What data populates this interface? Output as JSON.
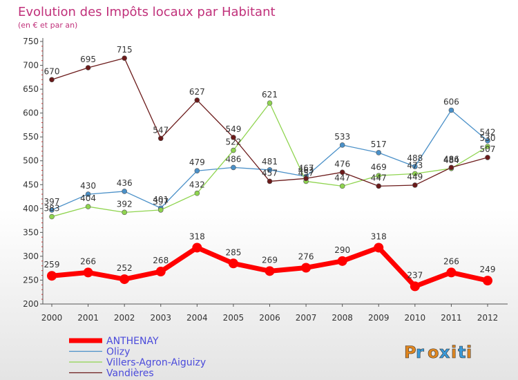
{
  "chart_data": {
    "type": "line",
    "title": "Evolution des Impôts locaux par Habitant",
    "subtitle": "(en € et par an)",
    "x": [
      "2000",
      "2001",
      "2002",
      "2003",
      "2004",
      "2005",
      "2006",
      "2007",
      "2008",
      "2009",
      "2010",
      "2011",
      "2012"
    ],
    "ylim": [
      200,
      750
    ],
    "yticks": [
      200,
      250,
      300,
      350,
      400,
      450,
      500,
      550,
      600,
      650,
      700,
      750
    ],
    "grid": false,
    "legend_position": "bottom-left",
    "series": [
      {
        "name": "ANTHENAY",
        "color": "#ff0000",
        "values": [
          259,
          266,
          252,
          268,
          318,
          285,
          269,
          276,
          290,
          318,
          237,
          266,
          249
        ]
      },
      {
        "name": "Olizy",
        "color": "#4a90c8",
        "values": [
          397,
          430,
          436,
          401,
          479,
          486,
          481,
          467,
          533,
          517,
          488,
          606,
          542
        ]
      },
      {
        "name": "Villers-Agron-Aiguizy",
        "color": "#8fd44f",
        "values": [
          383,
          404,
          392,
          397,
          432,
          522,
          621,
          457,
          447,
          469,
          473,
          484,
          530
        ]
      },
      {
        "name": "Vandières",
        "color": "#6b1a1a",
        "values": [
          670,
          695,
          715,
          547,
          627,
          549,
          457,
          463,
          476,
          447,
          449,
          486,
          507
        ]
      }
    ]
  },
  "logo": {
    "text": "Proxiti"
  }
}
